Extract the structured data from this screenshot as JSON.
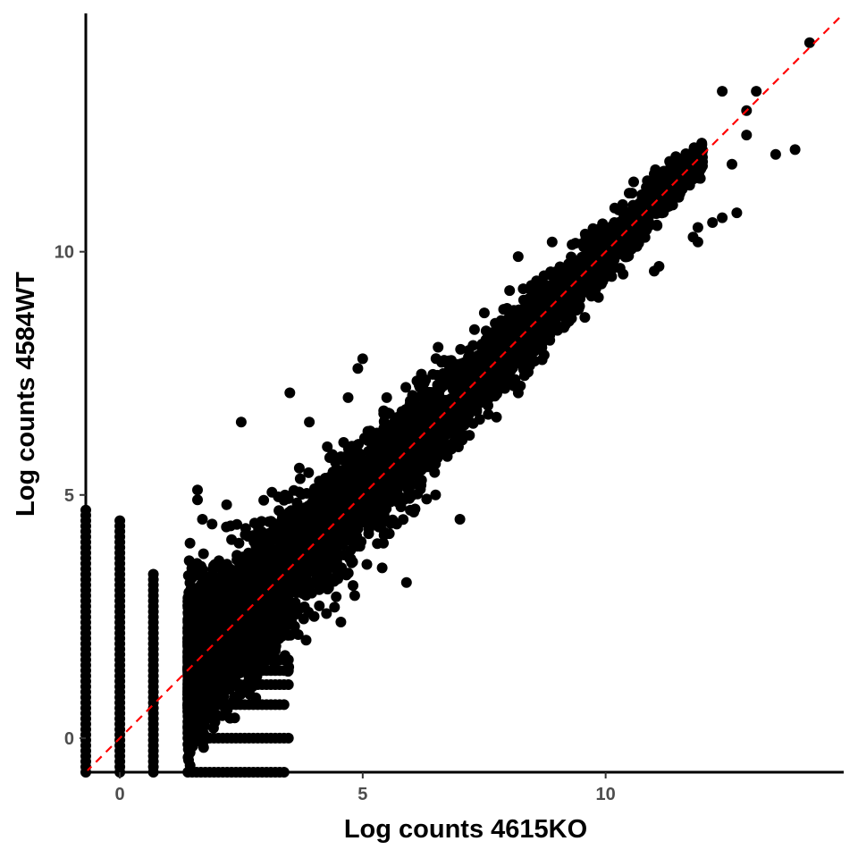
{
  "chart_data": {
    "type": "scatter",
    "title": "",
    "xlabel": "Log counts 4615KO",
    "ylabel": "Log counts 4584WT",
    "xlim": [
      -0.7,
      14.9
    ],
    "ylim": [
      -0.7,
      14.9
    ],
    "xticks": [
      0,
      5,
      10
    ],
    "yticks": [
      0,
      5,
      10
    ],
    "grid": false,
    "legend": "none",
    "point_color": "#000000",
    "reference_line": {
      "slope": 1,
      "intercept": 0,
      "color": "#ff0000",
      "style": "dashed"
    },
    "outliers": [
      [
        14.2,
        14.3
      ],
      [
        12.4,
        13.3
      ],
      [
        13.1,
        13.3
      ],
      [
        12.9,
        12.9
      ],
      [
        12.9,
        12.4
      ],
      [
        13.9,
        12.1
      ],
      [
        13.5,
        12.0
      ],
      [
        12.6,
        11.8
      ],
      [
        11.0,
        11.6
      ],
      [
        11.2,
        11.6
      ],
      [
        11.5,
        11.5
      ],
      [
        11.7,
        11.4
      ],
      [
        12.7,
        10.8
      ],
      [
        12.4,
        10.7
      ],
      [
        12.2,
        10.6
      ],
      [
        11.9,
        10.5
      ],
      [
        11.8,
        10.3
      ],
      [
        11.9,
        10.2
      ],
      [
        11.1,
        9.7
      ],
      [
        11.0,
        9.6
      ],
      [
        8.9,
        10.2
      ],
      [
        8.2,
        9.9
      ],
      [
        7.3,
        8.4
      ],
      [
        7.0,
        7.4
      ],
      [
        6.8,
        7.3
      ],
      [
        5.0,
        7.8
      ],
      [
        4.9,
        7.6
      ],
      [
        3.5,
        7.1
      ],
      [
        4.7,
        7.0
      ],
      [
        3.9,
        6.5
      ],
      [
        2.5,
        6.5
      ],
      [
        6.2,
        5.2
      ],
      [
        6.5,
        5.0
      ],
      [
        7.0,
        4.5
      ],
      [
        5.7,
        4.4
      ],
      [
        5.3,
        4.0
      ],
      [
        5.4,
        3.5
      ],
      [
        5.9,
        3.2
      ],
      [
        3.8,
        2.7
      ],
      [
        4.0,
        2.5
      ],
      [
        3.6,
        2.3
      ],
      [
        3.4,
        1.7
      ],
      [
        3.2,
        1.8
      ],
      [
        1.6,
        5.1
      ],
      [
        1.6,
        4.9
      ],
      [
        2.2,
        4.8
      ],
      [
        1.9,
        4.4
      ],
      [
        1.7,
        4.5
      ]
    ],
    "point_clusters": [
      {
        "x_range": [
          1.4,
          12.0
        ],
        "residual_sd_start": 0.75,
        "residual_sd_end": 0.18,
        "count": 5200
      }
    ],
    "discrete_x_columns": [
      {
        "x": -0.7,
        "y_max": 4.7
      },
      {
        "x": 0.0,
        "y_max": 4.5
      },
      {
        "x": 0.69,
        "y_max": 3.4
      }
    ],
    "discrete_y_rows": [
      {
        "y": -0.7,
        "x_max": 3.4
      },
      {
        "y": 0.0,
        "x_max": 3.5
      },
      {
        "y": 0.69,
        "x_max": 3.4
      },
      {
        "y": 1.1,
        "x_max": 3.5
      },
      {
        "y": 1.39,
        "x_max": 3.5
      },
      {
        "y": 1.61,
        "x_max": 3.5
      }
    ]
  }
}
